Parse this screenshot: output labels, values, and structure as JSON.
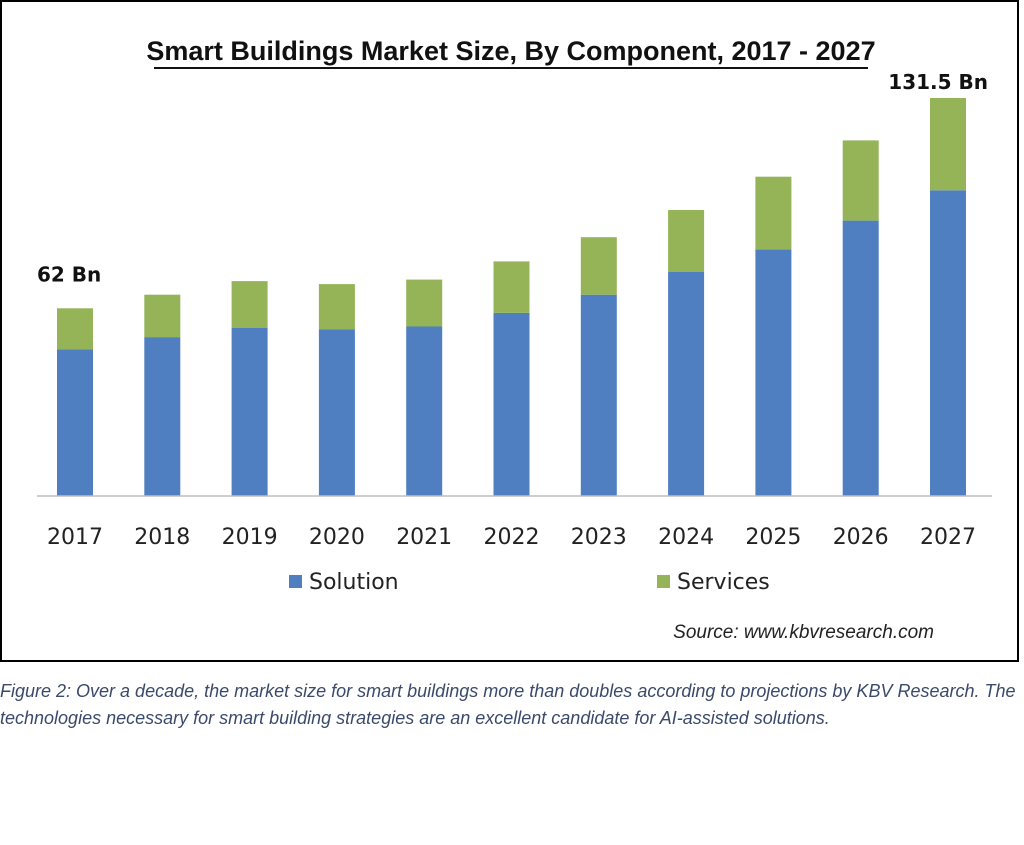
{
  "chart_data": {
    "type": "bar",
    "stacked": true,
    "title": "Smart Buildings Market Size, By Component, 2017 - 2027",
    "categories": [
      "2017",
      "2018",
      "2019",
      "2020",
      "2021",
      "2022",
      "2023",
      "2024",
      "2025",
      "2026",
      "2027"
    ],
    "series": [
      {
        "name": "Solution",
        "color": "#4f7fc0",
        "values": [
          48.5,
          52.5,
          55.5,
          55,
          56,
          60.5,
          66.5,
          74,
          81.5,
          91,
          101
        ]
      },
      {
        "name": "Services",
        "color": "#94b457",
        "values": [
          13.5,
          14,
          15.5,
          15,
          15.5,
          17,
          19,
          20.5,
          24,
          26.5,
          30.5
        ]
      }
    ],
    "annotations": [
      {
        "category": "2017",
        "text": "62 Bn"
      },
      {
        "category": "2027",
        "text": "131.5 Bn"
      }
    ],
    "xlabel": "",
    "ylabel": "",
    "ylim": [
      0,
      131.5
    ],
    "grid": false,
    "legend_position": "bottom",
    "source": "Source:  www.kbvresearch.com"
  },
  "caption": "Figure 2: Over a decade, the market size for smart buildings more than doubles according to projections by KBV Research. The technologies necessary for smart building strategies are an excellent candidate for AI-assisted solutions."
}
